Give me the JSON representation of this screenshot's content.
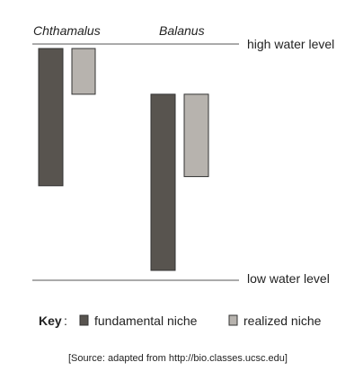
{
  "species": [
    {
      "name": "Chthamalus",
      "fundamental_niche": {
        "top": 1.0,
        "bottom": 0.4
      },
      "realized_niche": {
        "top": 1.0,
        "bottom": 0.8
      }
    },
    {
      "name": "Balanus",
      "fundamental_niche": {
        "top": 0.8,
        "bottom": 0.03
      },
      "realized_niche": {
        "top": 0.8,
        "bottom": 0.44
      }
    }
  ],
  "levels": {
    "high": "high water level",
    "low": "low water level"
  },
  "key": {
    "title": "Key",
    "colon": ":",
    "fundamental_label": "fundamental niche",
    "realized_label": "realized niche"
  },
  "colors": {
    "fundamental": "#58544f",
    "realized": "#b7b3ae"
  },
  "source": "[Source: adapted from http://bio.classes.ucsc.edu]"
}
